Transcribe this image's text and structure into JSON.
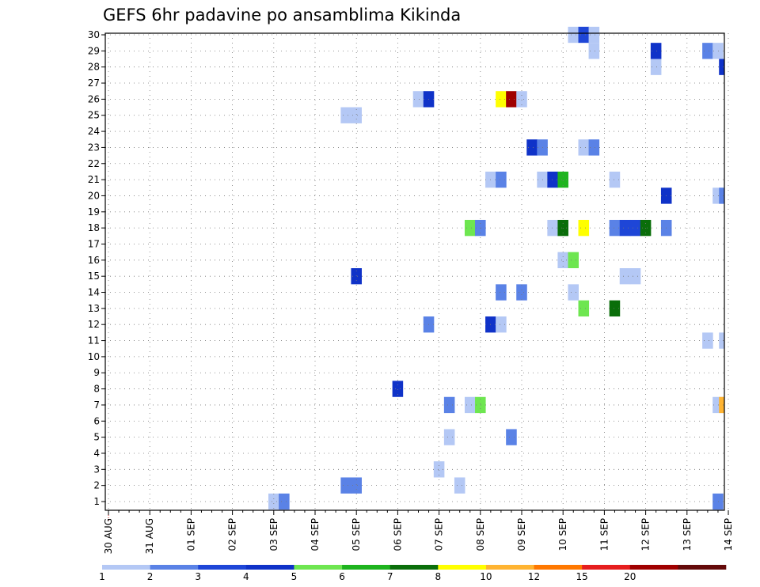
{
  "chart_data": {
    "type": "heatmap",
    "title": "GEFS 6hr padavine po ansamblima Kikinda",
    "xlabel": "",
    "ylabel": "",
    "x_tick_labels": [
      "30 AUG",
      "31 AUG",
      "01 SEP",
      "02 SEP",
      "03 SEP",
      "04 SEP",
      "05 SEP",
      "06 SEP",
      "07 SEP",
      "08 SEP",
      "09 SEP",
      "10 SEP",
      "11 SEP",
      "12 SEP",
      "13 SEP",
      "14 SEP"
    ],
    "y_tick_labels": [
      "1",
      "2",
      "3",
      "4",
      "5",
      "6",
      "7",
      "8",
      "9",
      "10",
      "11",
      "12",
      "13",
      "14",
      "15",
      "16",
      "17",
      "18",
      "19",
      "20",
      "21",
      "22",
      "23",
      "24",
      "25",
      "26",
      "27",
      "28",
      "29",
      "30"
    ],
    "xlim_days": [
      0,
      15
    ],
    "ylim": [
      1,
      30
    ],
    "grid": true,
    "colorbar": {
      "labels": [
        "1",
        "2",
        "3",
        "4",
        "5",
        "6",
        "7",
        "8",
        "10",
        "12",
        "15",
        "20"
      ],
      "colors": [
        "#b4c8f5",
        "#5a82e6",
        "#1e46d7",
        "#0f32c8",
        "#6ee650",
        "#1eb41e",
        "#0a6e0a",
        "#ffff00",
        "#ffb432",
        "#ff7800",
        "#e61e1e",
        "#a00000",
        "#640a0a"
      ]
    },
    "cells": [
      {
        "x": 4.0,
        "y": 1,
        "c": 0
      },
      {
        "x": 4.25,
        "y": 1,
        "c": 1
      },
      {
        "x": 14.75,
        "y": 1,
        "c": 1
      },
      {
        "x": 5.75,
        "y": 2,
        "c": 1
      },
      {
        "x": 6.0,
        "y": 2,
        "c": 1
      },
      {
        "x": 8.5,
        "y": 2,
        "c": 0
      },
      {
        "x": 8.0,
        "y": 3,
        "c": 0
      },
      {
        "x": 8.25,
        "y": 5,
        "c": 0
      },
      {
        "x": 9.75,
        "y": 5,
        "c": 1
      },
      {
        "x": 8.25,
        "y": 7,
        "c": 1
      },
      {
        "x": 8.75,
        "y": 7,
        "c": 0
      },
      {
        "x": 9.0,
        "y": 7,
        "c": 4
      },
      {
        "x": 14.75,
        "y": 7,
        "c": 0
      },
      {
        "x": 15.0,
        "y": 7,
        "c": 8
      },
      {
        "x": 7.0,
        "y": 8,
        "c": 3
      },
      {
        "x": 14.5,
        "y": 11,
        "c": 0
      },
      {
        "x": 15.0,
        "y": 11,
        "c": 0
      },
      {
        "x": 7.75,
        "y": 12,
        "c": 1
      },
      {
        "x": 9.25,
        "y": 12,
        "c": 3
      },
      {
        "x": 9.5,
        "y": 12,
        "c": 0
      },
      {
        "x": 11.5,
        "y": 13,
        "c": 4
      },
      {
        "x": 12.25,
        "y": 13,
        "c": 6
      },
      {
        "x": 9.5,
        "y": 14,
        "c": 1
      },
      {
        "x": 10.0,
        "y": 14,
        "c": 1
      },
      {
        "x": 11.25,
        "y": 14,
        "c": 0
      },
      {
        "x": 6.0,
        "y": 15,
        "c": 3
      },
      {
        "x": 12.5,
        "y": 15,
        "c": 0
      },
      {
        "x": 12.75,
        "y": 15,
        "c": 0
      },
      {
        "x": 11.0,
        "y": 16,
        "c": 0
      },
      {
        "x": 11.25,
        "y": 16,
        "c": 4
      },
      {
        "x": 8.75,
        "y": 18,
        "c": 4
      },
      {
        "x": 9.0,
        "y": 18,
        "c": 1
      },
      {
        "x": 10.75,
        "y": 18,
        "c": 0
      },
      {
        "x": 11.0,
        "y": 18,
        "c": 6
      },
      {
        "x": 11.5,
        "y": 18,
        "c": 7
      },
      {
        "x": 12.25,
        "y": 18,
        "c": 1
      },
      {
        "x": 12.5,
        "y": 18,
        "c": 2
      },
      {
        "x": 12.75,
        "y": 18,
        "c": 2
      },
      {
        "x": 13.0,
        "y": 18,
        "c": 6
      },
      {
        "x": 13.5,
        "y": 18,
        "c": 1
      },
      {
        "x": 13.5,
        "y": 20,
        "c": 3
      },
      {
        "x": 14.75,
        "y": 20,
        "c": 0
      },
      {
        "x": 15.0,
        "y": 20,
        "c": 1
      },
      {
        "x": 9.25,
        "y": 21,
        "c": 0
      },
      {
        "x": 9.5,
        "y": 21,
        "c": 1
      },
      {
        "x": 10.5,
        "y": 21,
        "c": 0
      },
      {
        "x": 10.75,
        "y": 21,
        "c": 3
      },
      {
        "x": 11.0,
        "y": 21,
        "c": 5
      },
      {
        "x": 12.25,
        "y": 21,
        "c": 0
      },
      {
        "x": 10.25,
        "y": 23,
        "c": 3
      },
      {
        "x": 10.5,
        "y": 23,
        "c": 1
      },
      {
        "x": 11.5,
        "y": 23,
        "c": 0
      },
      {
        "x": 11.75,
        "y": 23,
        "c": 1
      },
      {
        "x": 5.75,
        "y": 25,
        "c": 0
      },
      {
        "x": 6.0,
        "y": 25,
        "c": 0
      },
      {
        "x": 7.5,
        "y": 26,
        "c": 0
      },
      {
        "x": 7.75,
        "y": 26,
        "c": 3
      },
      {
        "x": 9.5,
        "y": 26,
        "c": 7
      },
      {
        "x": 9.75,
        "y": 26,
        "c": 11
      },
      {
        "x": 10.0,
        "y": 26,
        "c": 0
      },
      {
        "x": 13.25,
        "y": 28,
        "c": 0
      },
      {
        "x": 15.0,
        "y": 28,
        "c": 3
      },
      {
        "x": 11.75,
        "y": 29,
        "c": 0
      },
      {
        "x": 13.25,
        "y": 29,
        "c": 3
      },
      {
        "x": 14.5,
        "y": 29,
        "c": 1
      },
      {
        "x": 14.75,
        "y": 29,
        "c": 0
      },
      {
        "x": 11.25,
        "y": 30,
        "c": 0
      },
      {
        "x": 11.5,
        "y": 30,
        "c": 2
      },
      {
        "x": 11.75,
        "y": 30,
        "c": 0
      }
    ]
  }
}
